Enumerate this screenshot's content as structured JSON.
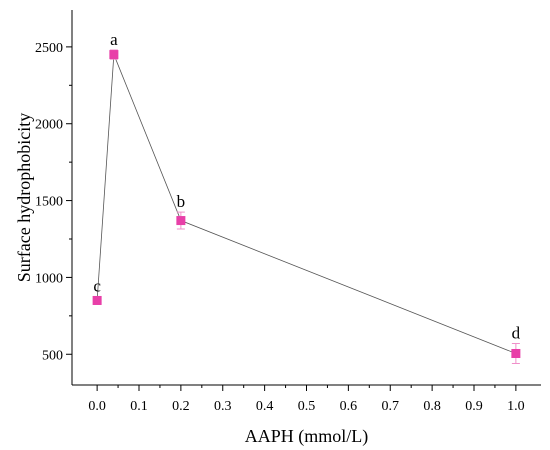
{
  "chart_data": {
    "type": "scatter",
    "title": "",
    "xlabel": "AAPH (mmol/L)",
    "ylabel": "Surface hydrophobicity",
    "xlim": [
      -0.06,
      1.06
    ],
    "ylim": [
      300,
      2740
    ],
    "x_ticks": [
      0.0,
      0.1,
      0.2,
      0.3,
      0.4,
      0.5,
      0.6,
      0.7,
      0.8,
      0.9,
      1.0
    ],
    "x_tick_labels": [
      "0.0",
      "0.1",
      "0.2",
      "0.3",
      "0.4",
      "0.5",
      "0.6",
      "0.7",
      "0.8",
      "0.9",
      "1.0"
    ],
    "y_ticks": [
      500,
      1000,
      1500,
      2000,
      2500
    ],
    "y_tick_labels": [
      "500",
      "1000",
      "1500",
      "2000",
      "2500"
    ],
    "grid": false,
    "legend": "none",
    "line_color": "#555555",
    "marker_color": "#e83fa8",
    "error_color": "#f08fca",
    "series": [
      {
        "x": [
          0.0,
          0.04,
          0.2,
          1.0
        ],
        "y": [
          850,
          2450,
          1370,
          505
        ],
        "error": [
          25,
          30,
          55,
          65
        ],
        "labels": [
          "c",
          "a",
          "b",
          "d"
        ]
      }
    ]
  }
}
